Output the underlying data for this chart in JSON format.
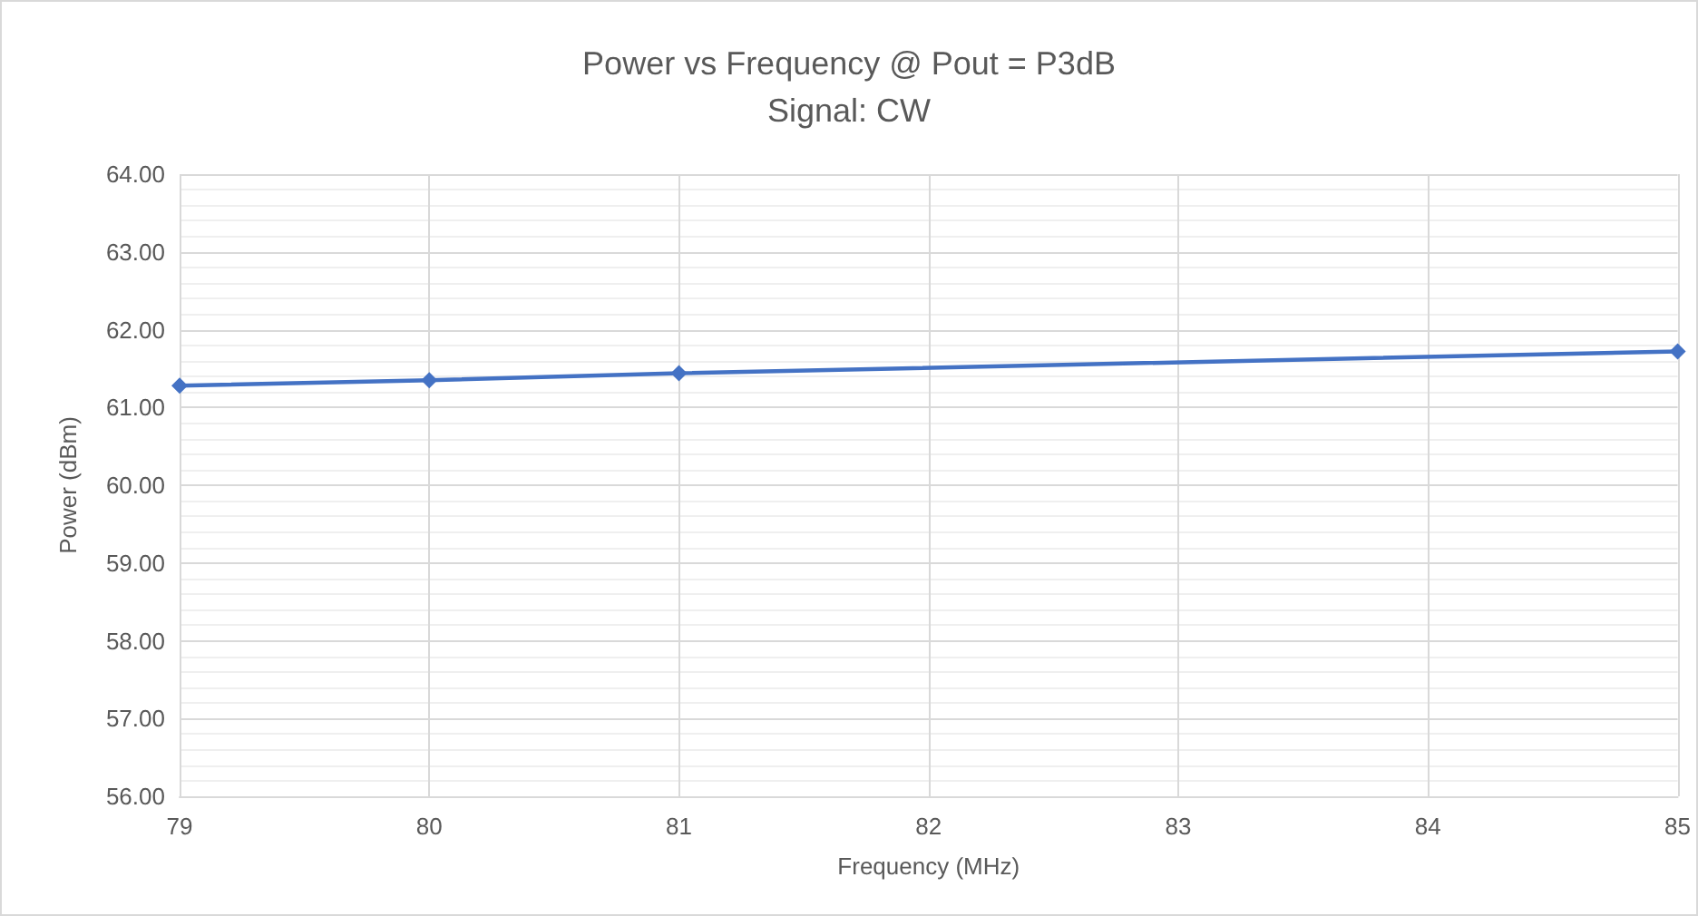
{
  "chart_data": {
    "type": "line",
    "title": "Power vs Frequency @ Pout = P3dB",
    "subtitle": "Signal: CW",
    "xlabel": "Frequency (MHz)",
    "ylabel": "Power (dBm)",
    "x": [
      79,
      80,
      81,
      85
    ],
    "series": [
      {
        "color": "#4472c4",
        "values": [
          61.28,
          61.35,
          61.44,
          61.72
        ]
      }
    ],
    "xlim": [
      79,
      85
    ],
    "xticks": [
      79,
      80,
      81,
      82,
      83,
      84,
      85
    ],
    "ylim": [
      56,
      64
    ],
    "yticks": [
      {
        "value": 56,
        "label": "56.00"
      },
      {
        "value": 57,
        "label": "57.00"
      },
      {
        "value": 58,
        "label": "58.00"
      },
      {
        "value": 59,
        "label": "59.00"
      },
      {
        "value": 60,
        "label": "60.00"
      },
      {
        "value": 61,
        "label": "61.00"
      },
      {
        "value": 62,
        "label": "62.00"
      },
      {
        "value": 63,
        "label": "63.00"
      },
      {
        "value": 64,
        "label": "64.00"
      }
    ],
    "grid": true,
    "marker": "diamond",
    "line_style": "solid"
  }
}
